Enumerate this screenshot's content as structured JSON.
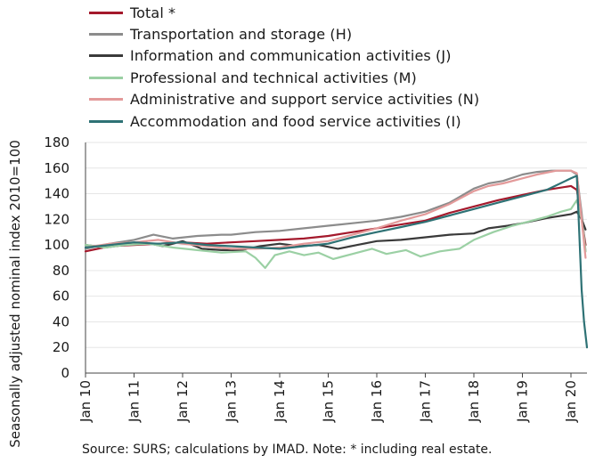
{
  "chart_data": {
    "type": "line",
    "title": "",
    "ylabel": "Seasonally adjusted nominal index 2010=100",
    "xlabel": "",
    "ylim": [
      0,
      180
    ],
    "yticks": [
      0,
      20,
      40,
      60,
      80,
      100,
      120,
      140,
      160,
      180
    ],
    "xticks": [
      "Jan 10",
      "Jan 11",
      "Jan 12",
      "Jan 13",
      "Jan 14",
      "Jan 15",
      "Jan 16",
      "Jan 17",
      "Jan 18",
      "Jan 19",
      "Jan 20"
    ],
    "x_range_years": [
      2010.0,
      2020.33
    ],
    "grid": "horizontal",
    "legend_position": "top-left",
    "series": [
      {
        "name": "Total *",
        "color": "#a4192c",
        "points": [
          [
            2010.0,
            95
          ],
          [
            2010.5,
            99
          ],
          [
            2011.0,
            100
          ],
          [
            2011.5,
            101
          ],
          [
            2012.0,
            102
          ],
          [
            2012.5,
            101
          ],
          [
            2013.0,
            102
          ],
          [
            2013.5,
            103
          ],
          [
            2014.0,
            104
          ],
          [
            2014.5,
            105
          ],
          [
            2015.0,
            107
          ],
          [
            2015.5,
            110
          ],
          [
            2016.0,
            113
          ],
          [
            2016.5,
            116
          ],
          [
            2017.0,
            119
          ],
          [
            2017.5,
            125
          ],
          [
            2018.0,
            130
          ],
          [
            2018.5,
            135
          ],
          [
            2019.0,
            139
          ],
          [
            2019.5,
            143
          ],
          [
            2020.0,
            146
          ],
          [
            2020.12,
            143
          ],
          [
            2020.22,
            120
          ],
          [
            2020.3,
            100
          ]
        ]
      },
      {
        "name": "Transportation and storage (H)",
        "color": "#8c8c8c",
        "points": [
          [
            2010.0,
            97
          ],
          [
            2010.5,
            101
          ],
          [
            2011.0,
            104
          ],
          [
            2011.4,
            108
          ],
          [
            2011.8,
            105
          ],
          [
            2012.3,
            107
          ],
          [
            2012.8,
            108
          ],
          [
            2013.0,
            108
          ],
          [
            2013.5,
            110
          ],
          [
            2014.0,
            111
          ],
          [
            2014.5,
            113
          ],
          [
            2015.0,
            115
          ],
          [
            2015.5,
            117
          ],
          [
            2016.0,
            119
          ],
          [
            2016.5,
            122
          ],
          [
            2017.0,
            126
          ],
          [
            2017.5,
            133
          ],
          [
            2018.0,
            144
          ],
          [
            2018.3,
            148
          ],
          [
            2018.6,
            150
          ],
          [
            2019.0,
            155
          ],
          [
            2019.3,
            157
          ],
          [
            2019.6,
            158
          ],
          [
            2020.0,
            158
          ],
          [
            2020.12,
            155
          ],
          [
            2020.22,
            125
          ],
          [
            2020.3,
            95
          ]
        ]
      },
      {
        "name": "Information and communication activities (J)",
        "color": "#3a3a3a",
        "points": [
          [
            2010.0,
            100
          ],
          [
            2010.4,
            98
          ],
          [
            2010.8,
            100
          ],
          [
            2011.2,
            102
          ],
          [
            2011.6,
            99
          ],
          [
            2012.0,
            103
          ],
          [
            2012.4,
            97
          ],
          [
            2012.8,
            96
          ],
          [
            2013.2,
            96
          ],
          [
            2013.6,
            99
          ],
          [
            2014.0,
            101
          ],
          [
            2014.4,
            99
          ],
          [
            2014.8,
            100
          ],
          [
            2015.2,
            97
          ],
          [
            2015.6,
            100
          ],
          [
            2016.0,
            103
          ],
          [
            2016.5,
            104
          ],
          [
            2017.0,
            106
          ],
          [
            2017.5,
            108
          ],
          [
            2018.0,
            109
          ],
          [
            2018.3,
            113
          ],
          [
            2018.7,
            115
          ],
          [
            2019.0,
            117
          ],
          [
            2019.5,
            121
          ],
          [
            2020.0,
            124
          ],
          [
            2020.12,
            126
          ],
          [
            2020.22,
            120
          ],
          [
            2020.3,
            112
          ]
        ]
      },
      {
        "name": "Professional and technical activities (M)",
        "color": "#9bd0a4",
        "points": [
          [
            2010.0,
            100
          ],
          [
            2010.4,
            98
          ],
          [
            2010.8,
            100
          ],
          [
            2011.3,
            101
          ],
          [
            2011.8,
            98
          ],
          [
            2012.3,
            96
          ],
          [
            2012.8,
            94
          ],
          [
            2013.3,
            95
          ],
          [
            2013.5,
            90
          ],
          [
            2013.7,
            82
          ],
          [
            2013.9,
            92
          ],
          [
            2014.2,
            95
          ],
          [
            2014.5,
            92
          ],
          [
            2014.8,
            94
          ],
          [
            2015.1,
            89
          ],
          [
            2015.5,
            93
          ],
          [
            2015.9,
            97
          ],
          [
            2016.2,
            93
          ],
          [
            2016.6,
            96
          ],
          [
            2016.9,
            91
          ],
          [
            2017.3,
            95
          ],
          [
            2017.7,
            97
          ],
          [
            2018.0,
            104
          ],
          [
            2018.4,
            110
          ],
          [
            2018.8,
            115
          ],
          [
            2019.0,
            117
          ],
          [
            2019.5,
            122
          ],
          [
            2019.8,
            126
          ],
          [
            2020.0,
            128
          ],
          [
            2020.12,
            135
          ],
          [
            2020.22,
            120
          ],
          [
            2020.3,
            95
          ]
        ]
      },
      {
        "name": "Administrative and support service activities (N)",
        "color": "#e39a9a",
        "points": [
          [
            2010.0,
            98
          ],
          [
            2010.5,
            101
          ],
          [
            2011.0,
            102
          ],
          [
            2011.5,
            104
          ],
          [
            2012.0,
            101
          ],
          [
            2012.5,
            99
          ],
          [
            2013.0,
            97
          ],
          [
            2013.5,
            97
          ],
          [
            2014.0,
            98
          ],
          [
            2014.5,
            101
          ],
          [
            2015.0,
            103
          ],
          [
            2015.5,
            108
          ],
          [
            2016.0,
            113
          ],
          [
            2016.5,
            119
          ],
          [
            2017.0,
            124
          ],
          [
            2017.5,
            132
          ],
          [
            2018.0,
            142
          ],
          [
            2018.3,
            146
          ],
          [
            2018.6,
            148
          ],
          [
            2019.0,
            152
          ],
          [
            2019.3,
            155
          ],
          [
            2019.7,
            158
          ],
          [
            2020.0,
            158
          ],
          [
            2020.12,
            156
          ],
          [
            2020.22,
            120
          ],
          [
            2020.3,
            90
          ]
        ]
      },
      {
        "name": "Accommodation and food service activities (I)",
        "color": "#2e7275",
        "points": [
          [
            2010.0,
            98
          ],
          [
            2010.5,
            100
          ],
          [
            2011.0,
            102
          ],
          [
            2011.5,
            101
          ],
          [
            2012.0,
            102
          ],
          [
            2012.5,
            100
          ],
          [
            2013.0,
            99
          ],
          [
            2013.5,
            98
          ],
          [
            2014.0,
            97
          ],
          [
            2014.5,
            99
          ],
          [
            2015.0,
            101
          ],
          [
            2015.5,
            106
          ],
          [
            2016.0,
            110
          ],
          [
            2016.5,
            114
          ],
          [
            2017.0,
            118
          ],
          [
            2017.5,
            123
          ],
          [
            2018.0,
            128
          ],
          [
            2018.5,
            133
          ],
          [
            2019.0,
            138
          ],
          [
            2019.5,
            143
          ],
          [
            2020.0,
            152
          ],
          [
            2020.12,
            154
          ],
          [
            2020.17,
            110
          ],
          [
            2020.22,
            65
          ],
          [
            2020.27,
            40
          ],
          [
            2020.33,
            20
          ]
        ]
      }
    ]
  },
  "source_note": "Source:  SURS; calculations by IMAD. Note: * including real estate."
}
